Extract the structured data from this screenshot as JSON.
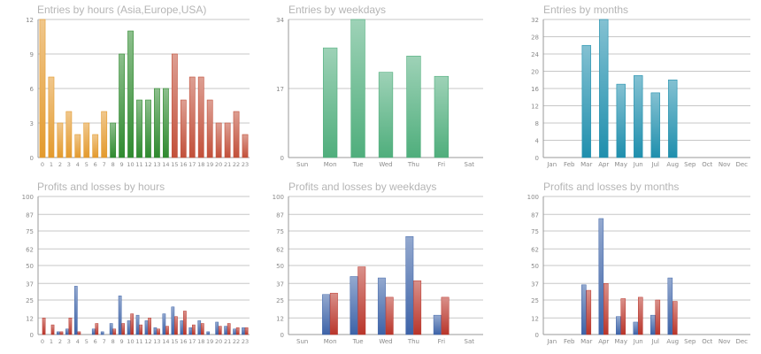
{
  "colors": {
    "grid": "#c7c7c7",
    "axis": "#9a9a9a",
    "tick_text": "#8a8a8a",
    "title_text": "#b5b5b5",
    "orange": "#e39a2d",
    "green_dark": "#2f8a2f",
    "red_brown": "#c2503a",
    "green_light": "#4fae7c",
    "teal": "#1f8fad",
    "blue": "#3d63a8",
    "red": "#b9352a"
  },
  "chart_data": [
    {
      "id": "hours",
      "type": "bar",
      "title": "Entries by hours (Asia,Europe,USA)",
      "categories": [
        "0",
        "1",
        "2",
        "3",
        "4",
        "5",
        "6",
        "7",
        "8",
        "9",
        "10",
        "11",
        "12",
        "13",
        "14",
        "15",
        "16",
        "17",
        "18",
        "19",
        "20",
        "21",
        "22",
        "23"
      ],
      "values": [
        12,
        7,
        3,
        4,
        2,
        3,
        2,
        4,
        3,
        9,
        11,
        5,
        5,
        6,
        6,
        9,
        5,
        7,
        7,
        5,
        3,
        3,
        4,
        2
      ],
      "bar_colors": [
        "orange",
        "orange",
        "orange",
        "orange",
        "orange",
        "orange",
        "orange",
        "orange",
        "green_dark",
        "green_dark",
        "green_dark",
        "green_dark",
        "green_dark",
        "green_dark",
        "green_dark",
        "red_brown",
        "red_brown",
        "red_brown",
        "red_brown",
        "red_brown",
        "red_brown",
        "red_brown",
        "red_brown",
        "red_brown"
      ],
      "ylim": [
        0,
        12
      ],
      "yticks": [
        "0",
        "3",
        "6",
        "9",
        "12"
      ],
      "grid": true
    },
    {
      "id": "weekdays",
      "type": "bar",
      "title": "Entries by weekdays",
      "categories": [
        "Sun",
        "Mon",
        "Tue",
        "Wed",
        "Thu",
        "Fri",
        "Sat"
      ],
      "values": [
        0,
        27,
        34,
        21,
        25,
        20,
        0
      ],
      "bar_colors": [
        "green_light",
        "green_light",
        "green_light",
        "green_light",
        "green_light",
        "green_light",
        "green_light"
      ],
      "ylim": [
        0,
        34
      ],
      "yticks": [
        "0",
        "17",
        "34"
      ],
      "grid": true
    },
    {
      "id": "months",
      "type": "bar",
      "title": "Entries by months",
      "categories": [
        "Jan",
        "Feb",
        "Mar",
        "Apr",
        "May",
        "Jun",
        "Jul",
        "Aug",
        "Sep",
        "Oct",
        "Nov",
        "Dec"
      ],
      "values": [
        0,
        0,
        26,
        32,
        17,
        19,
        15,
        18,
        0,
        0,
        0,
        0
      ],
      "bar_colors": [
        "teal",
        "teal",
        "teal",
        "teal",
        "teal",
        "teal",
        "teal",
        "teal",
        "teal",
        "teal",
        "teal",
        "teal"
      ],
      "ylim": [
        0,
        32
      ],
      "yticks": [
        "0",
        "4",
        "8",
        "12",
        "16",
        "20",
        "24",
        "28",
        "32"
      ],
      "grid": true
    },
    {
      "id": "pl_hours",
      "type": "bar",
      "title": "Profits and losses by hours",
      "categories": [
        "0",
        "1",
        "2",
        "3",
        "4",
        "5",
        "6",
        "7",
        "8",
        "9",
        "10",
        "11",
        "12",
        "13",
        "14",
        "15",
        "16",
        "17",
        "18",
        "19",
        "20",
        "21",
        "22",
        "23"
      ],
      "series": [
        {
          "color": "blue",
          "values": [
            0,
            0,
            2,
            4,
            35,
            0,
            4,
            2,
            8,
            28,
            10,
            14,
            10,
            5,
            15,
            20,
            10,
            5,
            10,
            2,
            9,
            6,
            4,
            5
          ]
        },
        {
          "color": "red",
          "values": [
            12,
            7,
            2,
            12,
            2,
            0,
            8,
            0,
            4,
            8,
            15,
            7,
            12,
            4,
            6,
            13,
            17,
            7,
            8,
            0,
            6,
            8,
            5,
            5
          ]
        }
      ],
      "ylim": [
        0,
        100
      ],
      "yticks": [
        "0",
        "12",
        "25",
        "37",
        "50",
        "62",
        "75",
        "87",
        "100"
      ],
      "grid": true
    },
    {
      "id": "pl_weekdays",
      "type": "bar",
      "title": "Profits and losses by weekdays",
      "categories": [
        "Sun",
        "Mon",
        "Tue",
        "Wed",
        "Thu",
        "Fri",
        "Sat"
      ],
      "series": [
        {
          "color": "blue",
          "values": [
            0,
            29,
            42,
            41,
            71,
            14,
            0
          ]
        },
        {
          "color": "red",
          "values": [
            0,
            30,
            49,
            27,
            39,
            27,
            0
          ]
        }
      ],
      "ylim": [
        0,
        100
      ],
      "yticks": [
        "0",
        "12",
        "25",
        "37",
        "50",
        "62",
        "75",
        "87",
        "100"
      ],
      "grid": true
    },
    {
      "id": "pl_months",
      "type": "bar",
      "title": "Profits and losses by months",
      "categories": [
        "Jan",
        "Feb",
        "Mar",
        "Apr",
        "May",
        "Jun",
        "Jul",
        "Aug",
        "Sep",
        "Oct",
        "Nov",
        "Dec"
      ],
      "series": [
        {
          "color": "blue",
          "values": [
            0,
            0,
            36,
            84,
            13,
            9,
            14,
            41,
            0,
            0,
            0,
            0
          ]
        },
        {
          "color": "red",
          "values": [
            0,
            0,
            32,
            37,
            26,
            27,
            25,
            24,
            0,
            0,
            0,
            0
          ]
        }
      ],
      "ylim": [
        0,
        100
      ],
      "yticks": [
        "0",
        "12",
        "25",
        "37",
        "50",
        "62",
        "75",
        "87",
        "100"
      ],
      "grid": true
    }
  ]
}
